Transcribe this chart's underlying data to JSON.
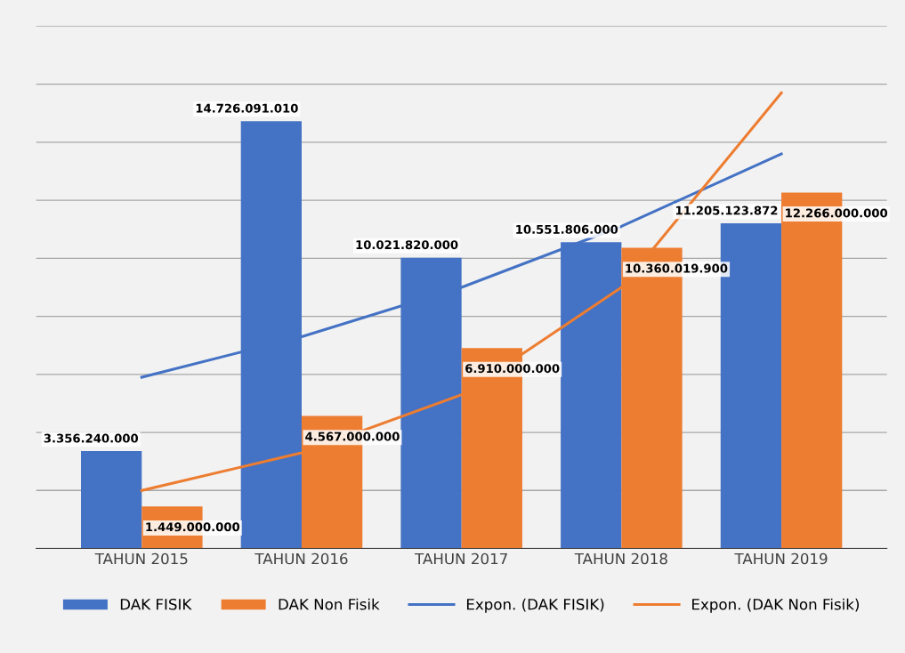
{
  "chart_data": {
    "type": "bar",
    "categories": [
      "TAHUN 2015",
      "TAHUN 2016",
      "TAHUN 2017",
      "TAHUN 2018",
      "TAHUN 2019"
    ],
    "series": [
      {
        "name": "DAK FISIK",
        "color": "#4472c4",
        "values": [
          3356240000,
          14726091010,
          10021820000,
          10551806000,
          11205123872
        ],
        "value_labels": [
          "3.356.240.000",
          "14.726.091.010",
          "10.021.820.000",
          "10.551.806.000",
          "11.205.123.872"
        ]
      },
      {
        "name": "DAK Non Fisik",
        "color": "#ed7d31",
        "values": [
          1449000000,
          4567000000,
          6910000000,
          10360019900,
          12266000000
        ],
        "value_labels": [
          "1.449.000.000",
          "4.567.000.000",
          "6.910.000.000",
          "10.360.019.900",
          "12.266.000.000"
        ]
      },
      {
        "name": "Expon. (DAK FISIK)",
        "type": "line",
        "color": "#4472c4",
        "values": [
          5900000000,
          7300000000,
          9000000000,
          11100000000,
          13600000000
        ]
      },
      {
        "name": "Expon. (DAK Non Fisik)",
        "type": "line",
        "color": "#ed7d31",
        "values": [
          2000000000,
          3300000000,
          5300000000,
          9000000000,
          15700000000
        ]
      }
    ],
    "ylim": [
      0,
      18000000000
    ],
    "yticks": [
      {
        "value": 0,
        "label": null
      },
      {
        "value": 2000000000,
        "label": null
      },
      {
        "value": 4000000000,
        "label": null
      },
      {
        "value": 6000000000,
        "label": null
      },
      {
        "value": 8000000000,
        "label": null
      },
      {
        "value": 10000000000,
        "label": null
      },
      {
        "value": 12000000000,
        "label": null
      },
      {
        "value": 14000000000,
        "label": null
      },
      {
        "value": 16000000000,
        "label": null
      },
      {
        "value": 18000000000,
        "label": null
      }
    ],
    "tick_labels": "x",
    "grid": "y",
    "legend": "bottom"
  }
}
